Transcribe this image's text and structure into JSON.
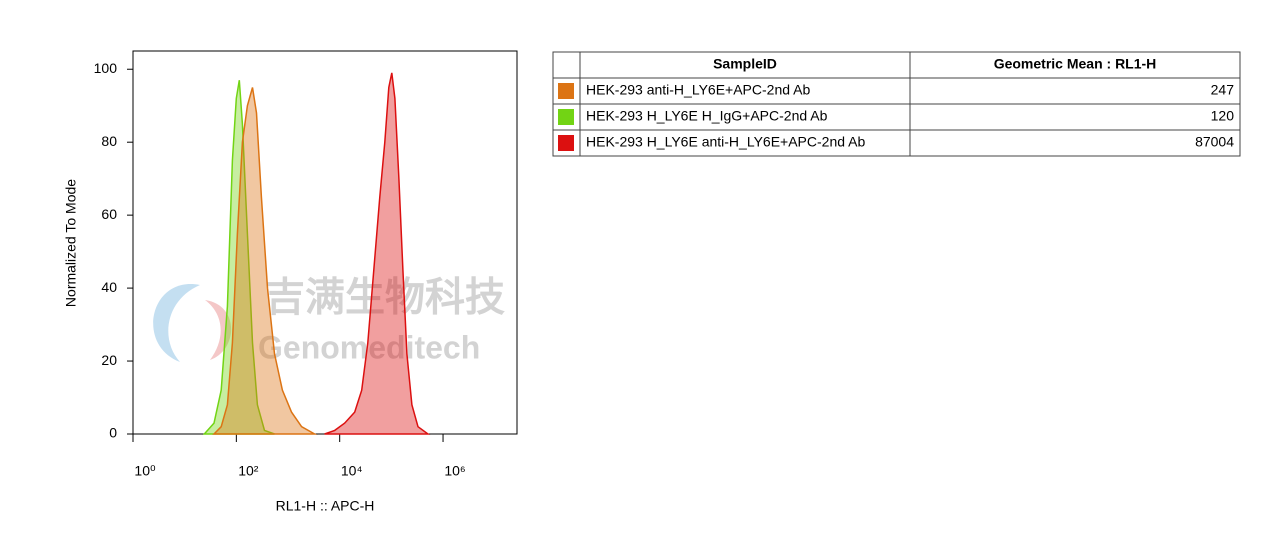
{
  "chart_data": {
    "type": "area",
    "xlabel": "RL1-H :: APC-H",
    "ylabel": "Normalized To Mode",
    "xscale": "log",
    "xlim": [
      1,
      27000000
    ],
    "xticks": [
      {
        "value": 1,
        "label": "10⁰"
      },
      {
        "value": 100,
        "label": "10²"
      },
      {
        "value": 10000,
        "label": "10⁴"
      },
      {
        "value": 1000000,
        "label": "10⁶"
      }
    ],
    "ylim": [
      0,
      105
    ],
    "yticks": [
      0,
      20,
      40,
      60,
      80,
      100
    ],
    "series": [
      {
        "name": "HEK-293 H_LY6E H_IgG+APC-2nd Ab",
        "color": "#72d414",
        "x": [
          24,
          37,
          51,
          67,
          84,
          100,
          114,
          131,
          164,
          205,
          256,
          350,
          547
        ],
        "values": [
          0,
          3,
          12,
          35,
          75,
          92,
          97,
          85,
          55,
          25,
          8,
          1,
          0
        ]
      },
      {
        "name": "HEK-293 anti-H_LY6E+APC-2nd Ab",
        "color": "#dc7414",
        "x": [
          37,
          51,
          67,
          84,
          105,
          131,
          164,
          205,
          245,
          306,
          400,
          547,
          780,
          1170,
          1830,
          3270
        ],
        "values": [
          0,
          2,
          8,
          25,
          55,
          80,
          90,
          95,
          88,
          65,
          40,
          22,
          12,
          6,
          2,
          0
        ]
      },
      {
        "name": "HEK-293 H_LY6E anti-H_LY6E+APC-2nd Ab",
        "color": "#dc1010",
        "x": [
          5100,
          8000,
          12500,
          19500,
          26700,
          35000,
          45700,
          59800,
          74800,
          89300,
          102000,
          117000,
          140000,
          167000,
          200000,
          250000,
          327000,
          512000
        ],
        "values": [
          0,
          1,
          3,
          6,
          12,
          25,
          45,
          65,
          80,
          95,
          99,
          92,
          70,
          45,
          22,
          8,
          2,
          0
        ]
      }
    ]
  },
  "watermark": {
    "cn": "吉满生物科技",
    "en": "Genomeditech"
  },
  "table": {
    "headers": [
      "SampleID",
      "Geometric Mean : RL1-H"
    ],
    "rows": [
      {
        "color": "#dc7414",
        "sample": "HEK-293 anti-H_LY6E+APC-2nd Ab",
        "value": 247
      },
      {
        "color": "#72d414",
        "sample": "HEK-293 H_LY6E H_IgG+APC-2nd Ab",
        "value": 120
      },
      {
        "color": "#dc1010",
        "sample": "HEK-293 H_LY6E anti-H_LY6E+APC-2nd Ab",
        "value": 87004
      }
    ]
  }
}
